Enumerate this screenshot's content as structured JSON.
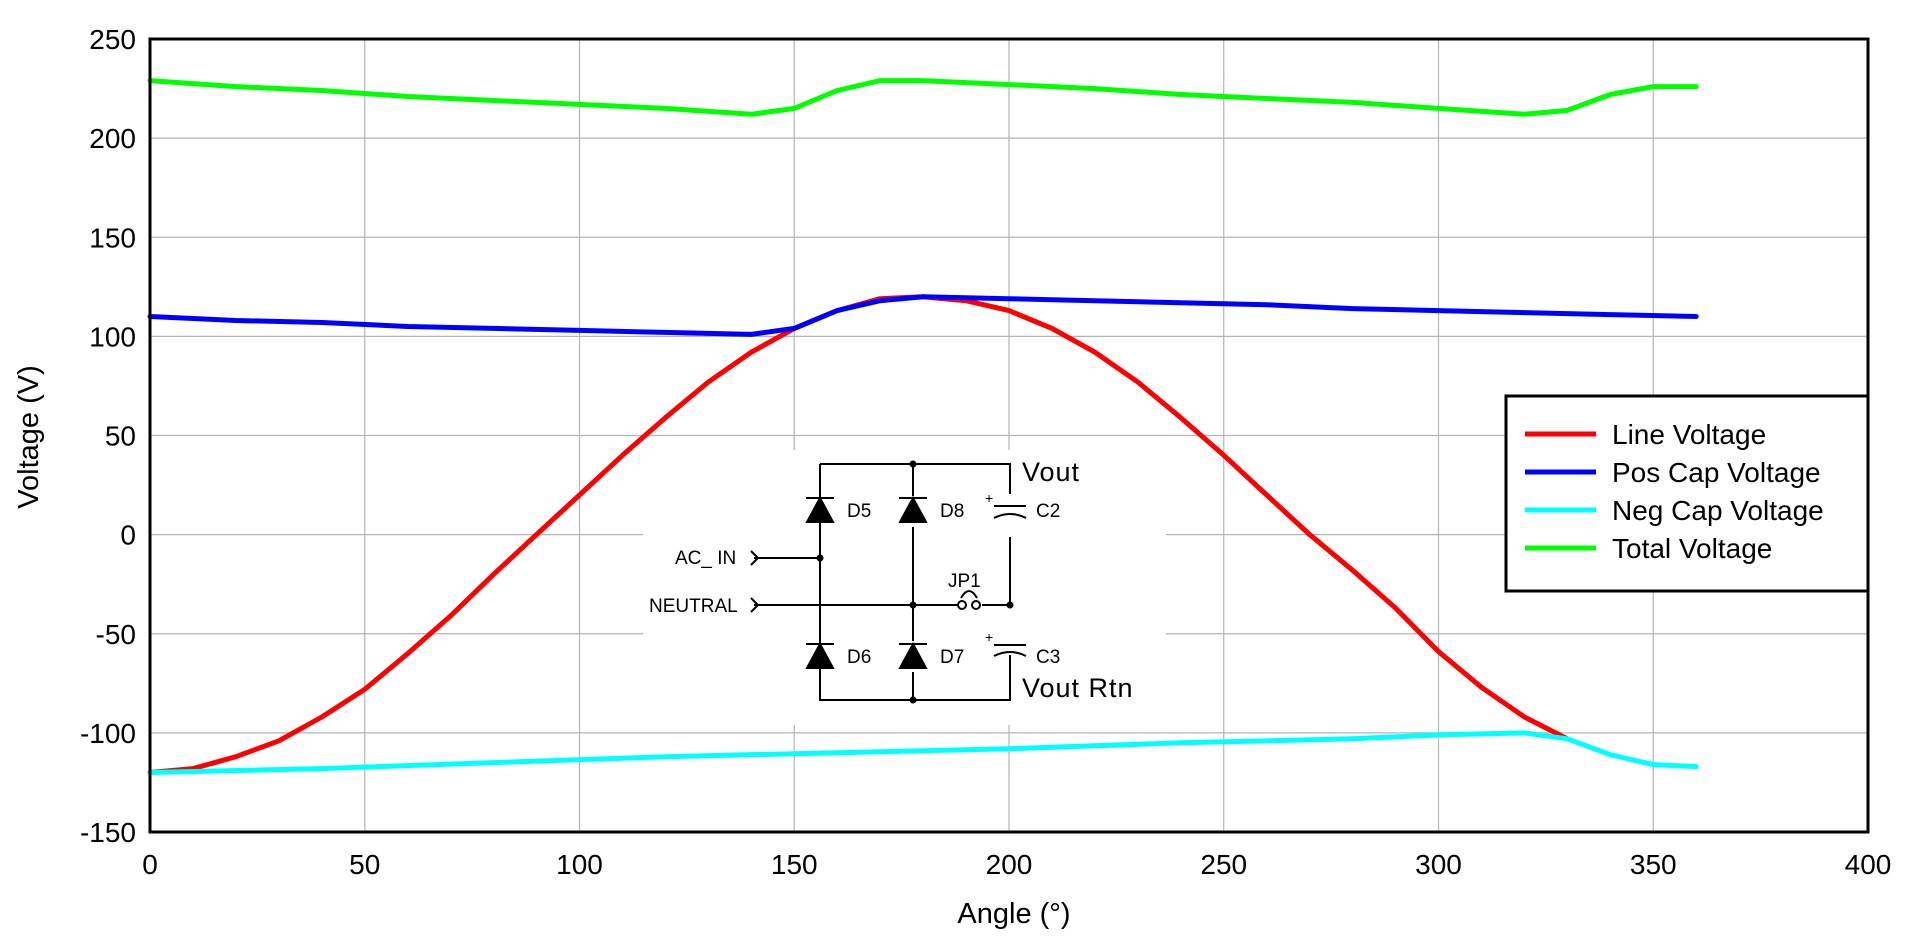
{
  "chart_data": {
    "type": "line",
    "xlabel": "Angle (°)",
    "ylabel": "Voltage (V)",
    "xlim": [
      0,
      400
    ],
    "ylim": [
      -150,
      250
    ],
    "xticks": [
      0,
      50,
      100,
      150,
      200,
      250,
      300,
      350,
      400
    ],
    "yticks": [
      -150,
      -100,
      -50,
      0,
      50,
      100,
      150,
      200,
      250
    ],
    "grid": true,
    "legend_position": "right",
    "series": [
      {
        "name": "Line Voltage",
        "color": "#ff0000",
        "x": [
          0,
          10,
          20,
          30,
          40,
          50,
          60,
          70,
          80,
          90,
          100,
          110,
          120,
          130,
          140,
          150,
          160,
          170,
          180,
          190,
          200,
          210,
          220,
          230,
          240,
          250,
          260,
          270,
          280,
          290,
          300,
          310,
          320,
          330
        ],
        "y": [
          -120,
          -118,
          -112,
          -104,
          -92,
          -78,
          -60,
          -41,
          -20,
          0,
          20,
          40,
          59,
          77,
          92,
          104,
          113,
          119,
          120,
          118,
          113,
          104,
          92,
          77,
          59,
          40,
          20,
          0,
          -18,
          -37,
          -59,
          -77,
          -92,
          -103
        ]
      },
      {
        "name": "Pos Cap Voltage",
        "color": "#0000ff",
        "x": [
          0,
          20,
          40,
          60,
          80,
          100,
          120,
          140,
          150,
          160,
          170,
          180,
          200,
          220,
          240,
          260,
          280,
          300,
          320,
          340,
          360
        ],
        "y": [
          110,
          108,
          107,
          105,
          104,
          103,
          102,
          101,
          104,
          113,
          118,
          120,
          119,
          118,
          117,
          116,
          114,
          113,
          112,
          111,
          110
        ]
      },
      {
        "name": "Neg Cap Voltage",
        "color": "#00ffff",
        "x": [
          0,
          40,
          80,
          120,
          160,
          200,
          240,
          280,
          300,
          320,
          330,
          340,
          350,
          360
        ],
        "y": [
          -120,
          -118,
          -115,
          -112,
          -110,
          -108,
          -105,
          -103,
          -101,
          -100,
          -103,
          -111,
          -116,
          -117
        ]
      },
      {
        "name": "Total Voltage",
        "color": "#00ff00",
        "x": [
          0,
          20,
          40,
          60,
          80,
          100,
          120,
          140,
          150,
          160,
          170,
          180,
          190,
          200,
          220,
          240,
          260,
          280,
          300,
          320,
          330,
          340,
          350,
          360
        ],
        "y": [
          229,
          226,
          224,
          221,
          219,
          217,
          215,
          212,
          215,
          224,
          229,
          229,
          228,
          227,
          225,
          222,
          220,
          218,
          215,
          212,
          214,
          222,
          226,
          226
        ]
      }
    ],
    "inset_schematic": {
      "diodes": [
        "D5",
        "D8",
        "D6",
        "D7"
      ],
      "capacitors": [
        "C2",
        "C3"
      ],
      "jumper": "JP1",
      "inputs": [
        "AC_ IN",
        "NEUTRAL"
      ],
      "outputs": [
        "Vout",
        "Vout Rtn"
      ],
      "polarity_mark": "+"
    }
  }
}
